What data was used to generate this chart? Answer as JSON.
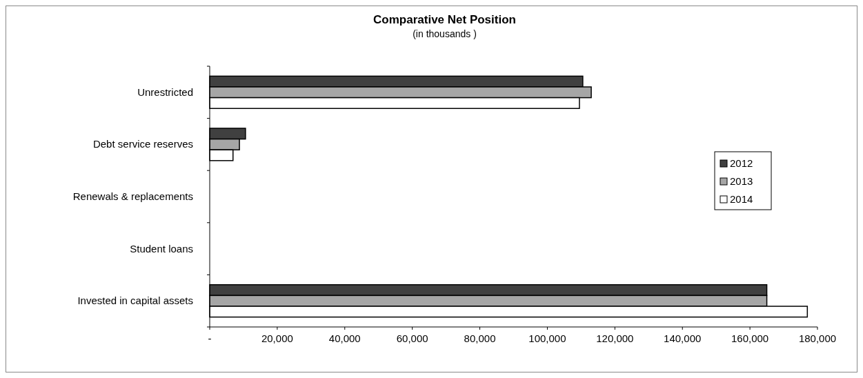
{
  "chart_data": {
    "type": "bar",
    "orientation": "horizontal",
    "title": "Comparative Net Position",
    "subtitle": "(in thousands )",
    "categories": [
      "Unrestricted",
      "Debt service reserves",
      "Renewals & replacements",
      "Student loans",
      "Invested in capital assets"
    ],
    "series": [
      {
        "name": "2012",
        "color": "#404040",
        "values": [
          110500,
          10600,
          0,
          null,
          165000
        ]
      },
      {
        "name": "2013",
        "color": "#a6a6a6",
        "values": [
          113000,
          8800,
          0,
          null,
          165000
        ]
      },
      {
        "name": "2014",
        "color": "#ffffff",
        "values": [
          109500,
          6900,
          0,
          null,
          177000
        ]
      }
    ],
    "xlim": [
      0,
      180000
    ],
    "xticks": [
      {
        "value": 0,
        "label": "-"
      },
      {
        "value": 20000,
        "label": "20,000"
      },
      {
        "value": 40000,
        "label": "40,000"
      },
      {
        "value": 60000,
        "label": "60,000"
      },
      {
        "value": 80000,
        "label": "80,000"
      },
      {
        "value": 100000,
        "label": "100,000"
      },
      {
        "value": 120000,
        "label": "120,000"
      },
      {
        "value": 140000,
        "label": "140,000"
      },
      {
        "value": 160000,
        "label": "160,000"
      },
      {
        "value": 180000,
        "label": "180,000"
      }
    ],
    "grid": false,
    "legend": "right"
  }
}
